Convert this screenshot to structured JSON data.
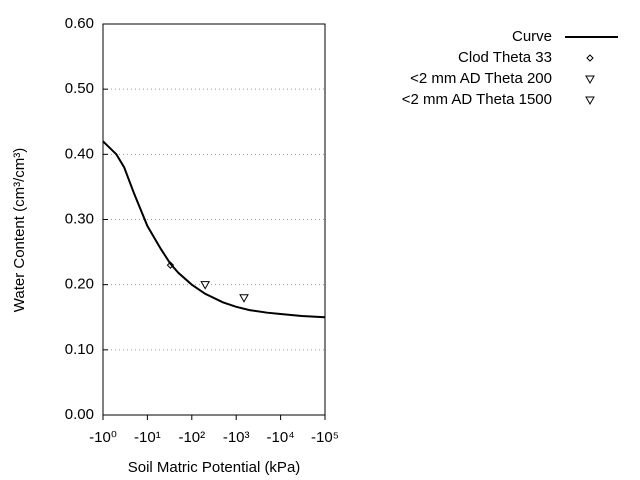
{
  "chart_data": {
    "type": "line",
    "x_label": "Soil Matric Potential (kPa)",
    "y_label": "Water Content (cm³/cm³)",
    "xscale": "log",
    "xlim": [
      1,
      100000
    ],
    "xticks": [
      {
        "value": 1,
        "label": "-10⁰"
      },
      {
        "value": 10,
        "label": "-10¹"
      },
      {
        "value": 100,
        "label": "-10²"
      },
      {
        "value": 1000,
        "label": "-10³"
      },
      {
        "value": 10000,
        "label": "-10⁴"
      },
      {
        "value": 100000,
        "label": "-10⁵"
      }
    ],
    "ylim": [
      0,
      0.6
    ],
    "yticks": [
      {
        "value": 0,
        "label": "0.00"
      },
      {
        "value": 0.1,
        "label": "0.10"
      },
      {
        "value": 0.2,
        "label": "0.20"
      },
      {
        "value": 0.3,
        "label": "0.30"
      },
      {
        "value": 0.4,
        "label": "0.40"
      },
      {
        "value": 0.5,
        "label": "0.50"
      },
      {
        "value": 0.6,
        "label": "0.60"
      }
    ],
    "grid": true,
    "legend": "outside-right",
    "series": [
      {
        "name": "Curve",
        "color": "#000000",
        "mode": "line",
        "x": [
          1,
          2,
          3,
          5,
          10,
          20,
          33,
          50,
          100,
          200,
          500,
          1000,
          2000,
          5000,
          10000,
          30000,
          100000
        ],
        "values": [
          0.42,
          0.4,
          0.38,
          0.34,
          0.29,
          0.255,
          0.232,
          0.218,
          0.2,
          0.186,
          0.173,
          0.166,
          0.161,
          0.157,
          0.155,
          0.152,
          0.15
        ]
      },
      {
        "name": "Clod Theta 33",
        "color": "#000000",
        "mode": "marker",
        "marker": "diamond",
        "x": [
          33
        ],
        "values": [
          0.23
        ]
      },
      {
        "name": "<2 mm AD Theta 200",
        "color": "#000000",
        "mode": "marker",
        "marker": "triangle-down",
        "x": [
          200
        ],
        "values": [
          0.2
        ]
      },
      {
        "name": "<2 mm AD Theta 1500",
        "color": "#000000",
        "mode": "marker",
        "marker": "triangle-down",
        "x": [
          1500
        ],
        "values": [
          0.18
        ]
      }
    ]
  }
}
